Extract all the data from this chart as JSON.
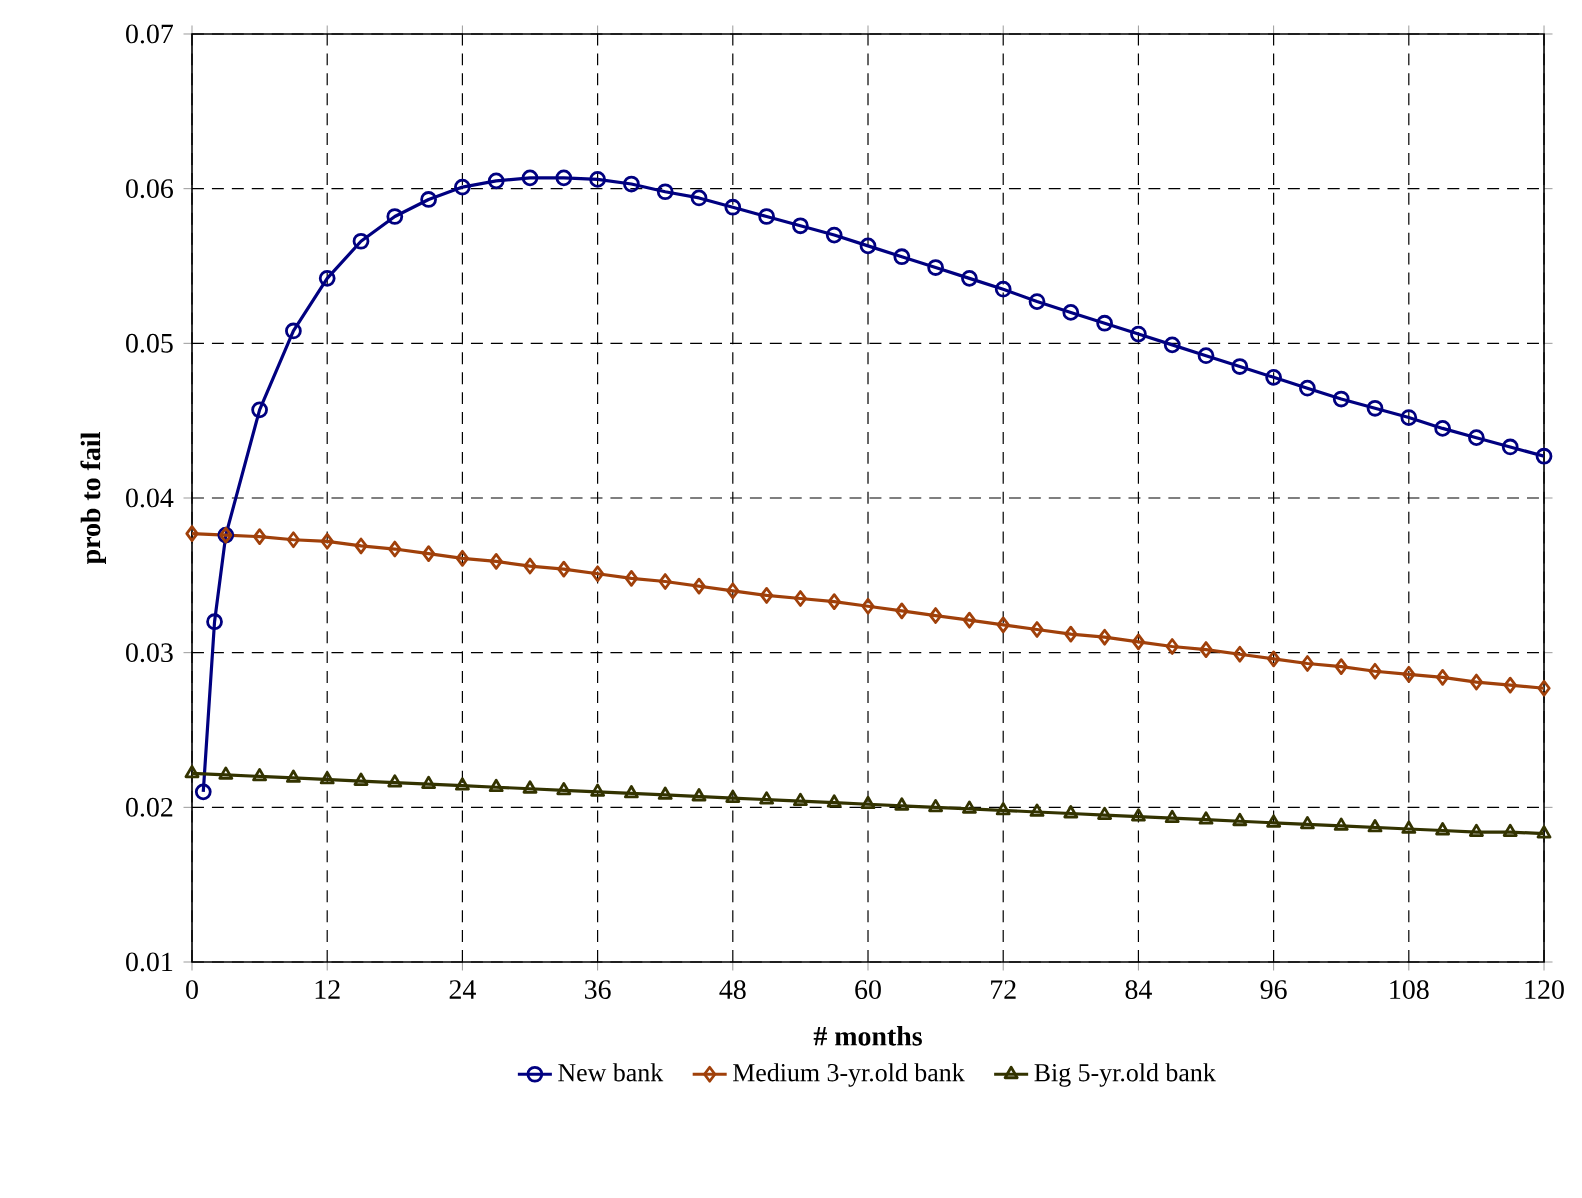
{
  "chart_data": {
    "type": "line",
    "xlabel": "# months",
    "ylabel": "prob to fail",
    "xlim": [
      0,
      120
    ],
    "ylim": [
      0.01,
      0.07
    ],
    "xticks": [
      0,
      12,
      24,
      36,
      48,
      60,
      72,
      84,
      96,
      108,
      120
    ],
    "yticks": [
      0.01,
      0.02,
      0.03,
      0.04,
      0.05,
      0.06,
      0.07
    ],
    "grid": true,
    "legend": "bottom",
    "line_style": "solid",
    "series": [
      {
        "name": "New bank",
        "color": "#000080",
        "marker": "circle",
        "x": [
          1,
          2,
          3,
          6,
          9,
          12,
          15,
          18,
          21,
          24,
          27,
          30,
          33,
          36,
          39,
          42,
          45,
          48,
          51,
          54,
          57,
          60,
          63,
          66,
          69,
          72,
          75,
          78,
          81,
          84,
          87,
          90,
          93,
          96,
          99,
          102,
          105,
          108,
          111,
          114,
          117,
          120
        ],
        "values": [
          0.021,
          0.032,
          0.0376,
          0.0457,
          0.0508,
          0.0542,
          0.0566,
          0.0582,
          0.0593,
          0.0601,
          0.0605,
          0.0607,
          0.0607,
          0.0606,
          0.0603,
          0.0598,
          0.0594,
          0.0588,
          0.0582,
          0.0576,
          0.057,
          0.0563,
          0.0556,
          0.0549,
          0.0542,
          0.0535,
          0.0527,
          0.052,
          0.0513,
          0.0506,
          0.0499,
          0.0492,
          0.0485,
          0.0478,
          0.0471,
          0.0464,
          0.0458,
          0.0452,
          0.0445,
          0.0439,
          0.0433,
          0.0427
        ]
      },
      {
        "name": "Medium 3-yr.old bank",
        "color": "#a0400a",
        "marker": "diamond",
        "x": [
          0,
          3,
          6,
          9,
          12,
          15,
          18,
          21,
          24,
          27,
          30,
          33,
          36,
          39,
          42,
          45,
          48,
          51,
          54,
          57,
          60,
          63,
          66,
          69,
          72,
          75,
          78,
          81,
          84,
          87,
          90,
          93,
          96,
          99,
          102,
          105,
          108,
          111,
          114,
          117,
          120
        ],
        "values": [
          0.0377,
          0.0376,
          0.0375,
          0.0373,
          0.0372,
          0.0369,
          0.0367,
          0.0364,
          0.0361,
          0.0359,
          0.0356,
          0.0354,
          0.0351,
          0.0348,
          0.0346,
          0.0343,
          0.034,
          0.0337,
          0.0335,
          0.0333,
          0.033,
          0.0327,
          0.0324,
          0.0321,
          0.0318,
          0.0315,
          0.0312,
          0.031,
          0.0307,
          0.0304,
          0.0302,
          0.0299,
          0.0296,
          0.0293,
          0.0291,
          0.0288,
          0.0286,
          0.0284,
          0.0281,
          0.0279,
          0.0277
        ]
      },
      {
        "name": "Big 5-yr.old bank",
        "color": "#333300",
        "marker": "triangle",
        "x": [
          0,
          3,
          6,
          9,
          12,
          15,
          18,
          21,
          24,
          27,
          30,
          33,
          36,
          39,
          42,
          45,
          48,
          51,
          54,
          57,
          60,
          63,
          66,
          69,
          72,
          75,
          78,
          81,
          84,
          87,
          90,
          93,
          96,
          99,
          102,
          105,
          108,
          111,
          114,
          117,
          120
        ],
        "values": [
          0.0222,
          0.0221,
          0.022,
          0.0219,
          0.0218,
          0.0217,
          0.0216,
          0.0215,
          0.0214,
          0.0213,
          0.0212,
          0.0211,
          0.021,
          0.0209,
          0.0208,
          0.0207,
          0.0206,
          0.0205,
          0.0204,
          0.0203,
          0.0202,
          0.0201,
          0.02,
          0.0199,
          0.0198,
          0.0197,
          0.0196,
          0.0195,
          0.0194,
          0.0193,
          0.0192,
          0.0191,
          0.019,
          0.0189,
          0.0188,
          0.0187,
          0.0186,
          0.0185,
          0.0184,
          0.0184,
          0.0183
        ]
      }
    ]
  }
}
